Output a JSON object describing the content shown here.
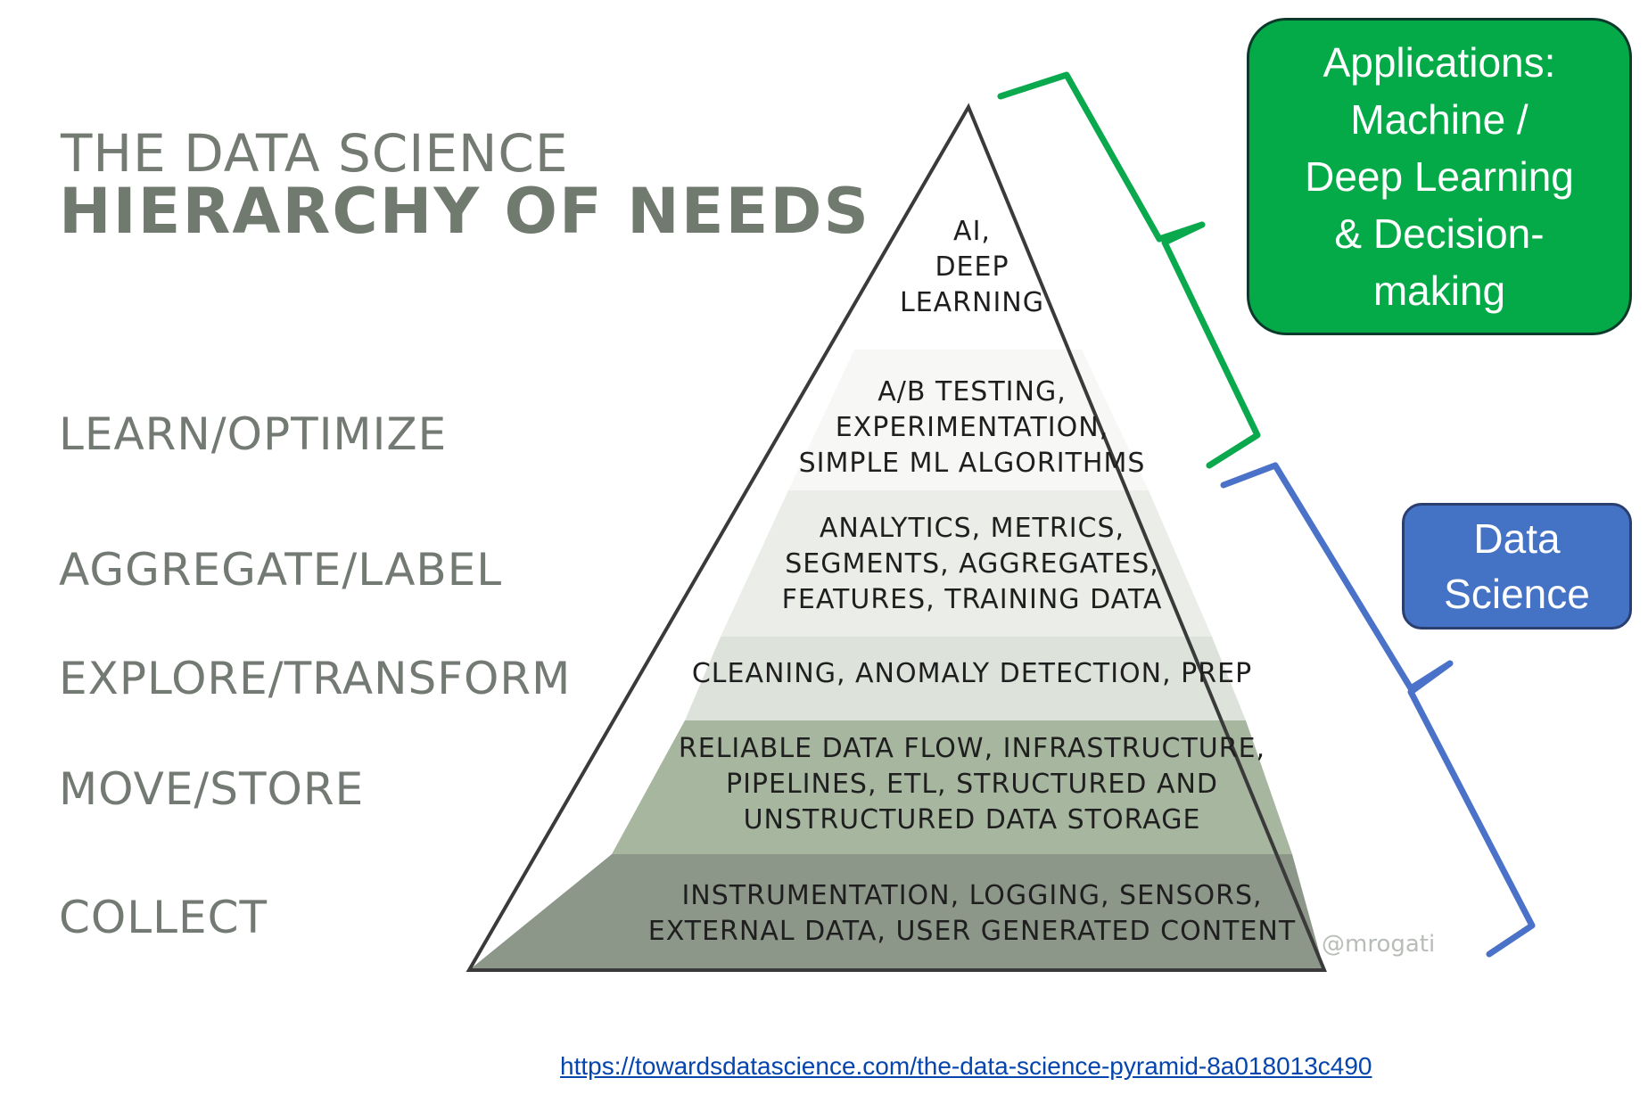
{
  "title": {
    "line1": "THE DATA SCIENCE",
    "line2": "HIERARCHY OF NEEDS"
  },
  "levels": [
    "LEARN/OPTIMIZE",
    "AGGREGATE/LABEL",
    "EXPLORE/TRANSFORM",
    "MOVE/STORE",
    "COLLECT"
  ],
  "pyramid_layers": [
    {
      "lines": [
        "AI,",
        "DEEP",
        "LEARNING"
      ],
      "color": "#ffffff"
    },
    {
      "lines": [
        "A/B TESTING,",
        "EXPERIMENTATION,",
        "SIMPLE ML ALGORITHMS"
      ],
      "color": "#f7f8f6"
    },
    {
      "lines": [
        "ANALYTICS, METRICS,",
        "SEGMENTS, AGGREGATES,",
        "FEATURES, TRAINING DATA"
      ],
      "color": "#eaede8"
    },
    {
      "lines": [
        "CLEANING, ANOMALY DETECTION, PREP"
      ],
      "color": "#dde3da"
    },
    {
      "lines": [
        "RELIABLE DATA FLOW, INFRASTRUCTURE,",
        "PIPELINES, ETL, STRUCTURED AND",
        "UNSTRUCTURED DATA STORAGE"
      ],
      "color": "#a7b69f"
    },
    {
      "lines": [
        "INSTRUMENTATION, LOGGING, SENSORS,",
        "EXTERNAL DATA, USER GENERATED CONTENT"
      ],
      "color": "#8c978a"
    }
  ],
  "watermark": "@mrogati",
  "callouts": {
    "applications": {
      "lines": [
        "Applications:",
        "Machine /",
        "Deep Learning",
        "& Decision-",
        "making"
      ],
      "color": "#04aa48"
    },
    "data_science": {
      "lines": [
        "Data",
        "Science"
      ],
      "color": "#4472c4"
    }
  },
  "colors": {
    "green_bracket": "#0aa94e",
    "blue_bracket": "#4a72c8",
    "pyramid_outline": "#3a3a3a"
  },
  "source_url": "https://towardsdatascience.com/the-data-science-pyramid-8a018013c490"
}
